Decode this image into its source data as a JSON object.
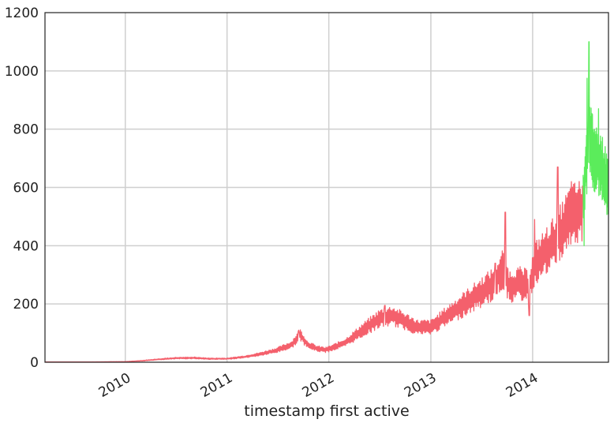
{
  "chart_data": {
    "type": "line",
    "xlabel": "timestamp first active",
    "ylabel": "",
    "title": "",
    "ylim": [
      0,
      1200
    ],
    "xlim": [
      "2009-03-19",
      "2014-09-30"
    ],
    "yticks": [
      {
        "value": 0,
        "label": "0"
      },
      {
        "value": 200,
        "label": "200"
      },
      {
        "value": 400,
        "label": "400"
      },
      {
        "value": 600,
        "label": "600"
      },
      {
        "value": 800,
        "label": "800"
      },
      {
        "value": 1000,
        "label": "1000"
      },
      {
        "value": 1200,
        "label": "1200"
      }
    ],
    "xticks": [
      {
        "value": "2010-01-01",
        "label": "2010"
      },
      {
        "value": "2011-01-01",
        "label": "2011"
      },
      {
        "value": "2012-01-01",
        "label": "2012"
      },
      {
        "value": "2013-01-01",
        "label": "2013"
      },
      {
        "value": "2014-01-01",
        "label": "2014"
      }
    ],
    "grid": true,
    "series": [
      {
        "color": "#f4606c",
        "points": [
          [
            "2009-03-19",
            1
          ],
          [
            "2009-09-01",
            1
          ],
          [
            "2010-01-01",
            2
          ],
          [
            "2010-03-01",
            5
          ],
          [
            "2010-05-01",
            10
          ],
          [
            "2010-07-01",
            14
          ],
          [
            "2010-09-01",
            15
          ],
          [
            "2010-11-01",
            12
          ],
          [
            "2011-01-01",
            12
          ],
          [
            "2011-03-01",
            18
          ],
          [
            "2011-05-01",
            28
          ],
          [
            "2011-07-01",
            42
          ],
          [
            "2011-08-20",
            60
          ],
          [
            "2011-09-20",
            95
          ],
          [
            "2011-10-15",
            62
          ],
          [
            "2011-11-15",
            48
          ],
          [
            "2011-12-20",
            42
          ],
          [
            "2012-01-15",
            50
          ],
          [
            "2012-03-01",
            68
          ],
          [
            "2012-05-01",
            110
          ],
          [
            "2012-07-01",
            150
          ],
          [
            "2012-08-15",
            160
          ],
          [
            "2012-10-01",
            140
          ],
          [
            "2012-11-15",
            120
          ],
          [
            "2013-01-01",
            120
          ],
          [
            "2013-03-01",
            160
          ],
          [
            "2013-05-01",
            200
          ],
          [
            "2013-07-01",
            240
          ],
          [
            "2013-08-15",
            270
          ],
          [
            "2013-09-15",
            320
          ],
          [
            "2013-10-10",
            260
          ],
          [
            "2013-11-15",
            270
          ],
          [
            "2013-12-20",
            260
          ],
          [
            "2014-01-10",
            340
          ],
          [
            "2014-03-01",
            390
          ],
          [
            "2014-04-15",
            450
          ],
          [
            "2014-05-15",
            500
          ],
          [
            "2014-06-30",
            520
          ]
        ],
        "spikes": [
          [
            "2011-09-15",
            110
          ],
          [
            "2012-07-20",
            195
          ],
          [
            "2013-08-20",
            340
          ],
          [
            "2013-09-25",
            515
          ],
          [
            "2013-12-20",
            160
          ],
          [
            "2014-01-08",
            490
          ],
          [
            "2014-04-01",
            670
          ],
          [
            "2014-05-20",
            620
          ]
        ]
      },
      {
        "color": "#5bec5b",
        "points": [
          [
            "2014-07-01",
            560
          ],
          [
            "2014-07-10",
            660
          ],
          [
            "2014-07-20",
            760
          ],
          [
            "2014-08-01",
            740
          ],
          [
            "2014-08-15",
            700
          ],
          [
            "2014-09-01",
            680
          ],
          [
            "2014-09-15",
            640
          ],
          [
            "2014-09-30",
            600
          ]
        ],
        "spikes": [
          [
            "2014-07-15",
            975
          ],
          [
            "2014-07-22",
            1100
          ],
          [
            "2014-08-25",
            870
          ],
          [
            "2014-07-05",
            400
          ]
        ]
      }
    ]
  }
}
